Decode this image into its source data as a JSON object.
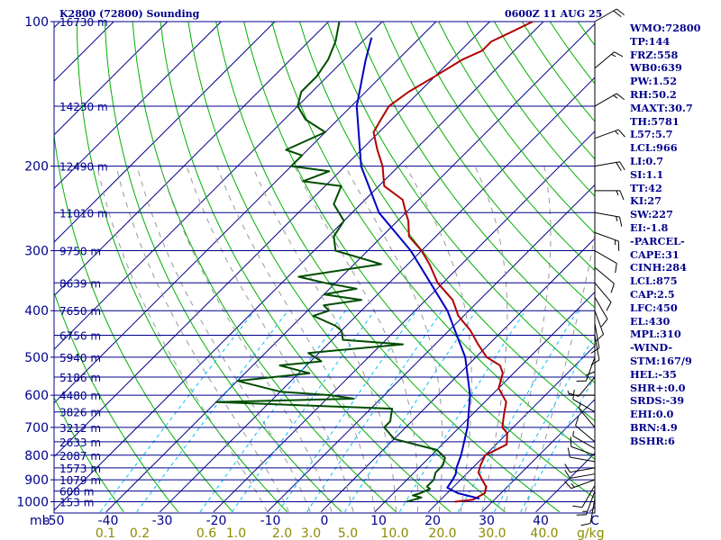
{
  "header": {
    "station": "K2800 (72800) Sounding",
    "time": "0600Z 11 AUG 25"
  },
  "indices": [
    "WMO:72800",
    "TP:144",
    "FRZ:558",
    "WB0:639",
    "PW:1.52",
    "RH:50.2",
    "MAXT:30.7",
    "TH:5781",
    "L57:5.7",
    "LCL:966",
    "LI:0.7",
    "SI:1.1",
    "TT:42",
    "KI:27",
    "SW:227",
    "EI:-1.8",
    "-PARCEL-",
    "CAPE:31",
    "CINH:284",
    "LCL:875",
    "CAP:2.5",
    "LFC:450",
    "EL:430",
    "MPL:310",
    "-WIND-",
    "STM:167/9",
    "HEL:-35",
    "SHR+:0.0",
    "SRDS:-39",
    "EHI:0.0",
    "BRN:4.9",
    "BSHR:6"
  ],
  "colors": {
    "pressure_line": "#00008b",
    "skewed_isotherm": "#00008b",
    "dry_adiabat": "#00b000",
    "mixing_ratio": "#00bfff",
    "moist_adiabat": "#999999",
    "temperature": "#b00000",
    "dewpoint": "#004d00",
    "parcel": "#0000c0",
    "text": "#00008b",
    "mixing_ratio_labels": "#8b8b00"
  },
  "chart_data": {
    "type": "line",
    "subtype": "skew-T log-P sounding",
    "axes": {
      "y_label": "mb",
      "y_ticks": [
        100,
        200,
        300,
        400,
        500,
        600,
        700,
        800,
        900,
        1000
      ],
      "y_scale": "log",
      "y_range": [
        1050,
        100
      ],
      "x_ticks": [
        -50,
        -40,
        -30,
        -20,
        -10,
        0,
        10,
        20,
        30,
        40,
        "C"
      ],
      "x_unit": "C",
      "mixing_ratio_ticks": [
        "0.1",
        "0.2",
        "0.6",
        "1.0",
        "2.0",
        "3.0",
        "5.0",
        "10.0",
        "20.0",
        "30.0",
        "40.0"
      ],
      "mixing_ratio_unit": "g/kg"
    },
    "height_labels": [
      {
        "p": 100,
        "label": "16730 m"
      },
      {
        "p": 150,
        "label": "14230 m"
      },
      {
        "p": 200,
        "label": "12490 m"
      },
      {
        "p": 250,
        "label": "11010 m"
      },
      {
        "p": 300,
        "label": "9750 m"
      },
      {
        "p": 350,
        "label": "8639 m"
      },
      {
        "p": 400,
        "label": "7650 m"
      },
      {
        "p": 450,
        "label": "6756 m"
      },
      {
        "p": 500,
        "label": "5940 m"
      },
      {
        "p": 550,
        "label": "5186 m"
      },
      {
        "p": 600,
        "label": "4480 m"
      },
      {
        "p": 650,
        "label": "3826 m"
      },
      {
        "p": 700,
        "label": "3212 m"
      },
      {
        "p": 750,
        "label": "2633 m"
      },
      {
        "p": 800,
        "label": "2087 m"
      },
      {
        "p": 850,
        "label": "1573 m"
      },
      {
        "p": 900,
        "label": "1079 m"
      },
      {
        "p": 950,
        "label": "608 m"
      },
      {
        "p": 1000,
        "label": "153 m"
      }
    ],
    "series": [
      {
        "name": "temperature",
        "points": [
          [
            1000,
            23
          ],
          [
            990,
            26
          ],
          [
            960,
            27
          ],
          [
            930,
            26
          ],
          [
            900,
            24
          ],
          [
            870,
            22
          ],
          [
            840,
            21
          ],
          [
            800,
            20
          ],
          [
            760,
            22
          ],
          [
            720,
            20
          ],
          [
            700,
            18
          ],
          [
            660,
            16
          ],
          [
            620,
            14
          ],
          [
            580,
            10
          ],
          [
            540,
            8
          ],
          [
            520,
            6
          ],
          [
            500,
            2
          ],
          [
            470,
            -2
          ],
          [
            440,
            -6
          ],
          [
            410,
            -11
          ],
          [
            380,
            -15
          ],
          [
            350,
            -21
          ],
          [
            320,
            -26
          ],
          [
            300,
            -30
          ],
          [
            280,
            -35
          ],
          [
            260,
            -38
          ],
          [
            250,
            -40
          ],
          [
            235,
            -43
          ],
          [
            220,
            -49
          ],
          [
            200,
            -53
          ],
          [
            185,
            -57
          ],
          [
            170,
            -61
          ],
          [
            160,
            -62
          ],
          [
            150,
            -63
          ],
          [
            140,
            -62
          ],
          [
            130,
            -60
          ],
          [
            120,
            -58
          ],
          [
            115,
            -56
          ],
          [
            110,
            -56
          ],
          [
            105,
            -54
          ],
          [
            100,
            -52
          ]
        ]
      },
      {
        "name": "dewpoint",
        "points": [
          [
            1000,
            14
          ],
          [
            990,
            15
          ],
          [
            980,
            16
          ],
          [
            970,
            14
          ],
          [
            960,
            15
          ],
          [
            940,
            16
          ],
          [
            930,
            15
          ],
          [
            900,
            15
          ],
          [
            870,
            14
          ],
          [
            840,
            14
          ],
          [
            810,
            13
          ],
          [
            780,
            10
          ],
          [
            760,
            5
          ],
          [
            740,
            0
          ],
          [
            700,
            -4
          ],
          [
            680,
            -4
          ],
          [
            660,
            -5
          ],
          [
            640,
            -6
          ],
          [
            620,
            -40
          ],
          [
            610,
            -15
          ],
          [
            600,
            -20
          ],
          [
            590,
            -30
          ],
          [
            560,
            -40
          ],
          [
            540,
            -28
          ],
          [
            520,
            -35
          ],
          [
            510,
            -28
          ],
          [
            490,
            -32
          ],
          [
            470,
            -16
          ],
          [
            460,
            -28
          ],
          [
            440,
            -30
          ],
          [
            430,
            -32
          ],
          [
            410,
            -38
          ],
          [
            400,
            -36
          ],
          [
            390,
            -38
          ],
          [
            380,
            -32
          ],
          [
            370,
            -40
          ],
          [
            360,
            -35
          ],
          [
            350,
            -42
          ],
          [
            340,
            -48
          ],
          [
            320,
            -35
          ],
          [
            300,
            -46
          ],
          [
            280,
            -49
          ],
          [
            260,
            -50
          ],
          [
            240,
            -55
          ],
          [
            220,
            -57
          ],
          [
            215,
            -65
          ],
          [
            205,
            -62
          ],
          [
            200,
            -70
          ],
          [
            190,
            -70
          ],
          [
            185,
            -74
          ],
          [
            170,
            -70
          ],
          [
            160,
            -76
          ],
          [
            150,
            -80
          ],
          [
            140,
            -82
          ],
          [
            130,
            -82
          ],
          [
            120,
            -83
          ],
          [
            110,
            -85
          ],
          [
            100,
            -88
          ]
        ]
      },
      {
        "name": "parcel",
        "points": [
          [
            985,
            27
          ],
          [
            960,
            22
          ],
          [
            935,
            19
          ],
          [
            900,
            18.5
          ],
          [
            875,
            18
          ],
          [
            850,
            17
          ],
          [
            800,
            15.5
          ],
          [
            700,
            11.5
          ],
          [
            600,
            6
          ],
          [
            500,
            -2
          ],
          [
            400,
            -14
          ],
          [
            300,
            -32
          ],
          [
            250,
            -45
          ],
          [
            200,
            -57
          ],
          [
            150,
            -69
          ],
          [
            120,
            -76
          ],
          [
            108,
            -79
          ]
        ]
      }
    ],
    "wind_barbs": [
      {
        "p": 985,
        "dir": 190,
        "spd": 10
      },
      {
        "p": 950,
        "dir": 200,
        "spd": 15
      },
      {
        "p": 925,
        "dir": 210,
        "spd": 10
      },
      {
        "p": 900,
        "dir": 250,
        "spd": 15
      },
      {
        "p": 875,
        "dir": 260,
        "spd": 10
      },
      {
        "p": 850,
        "dir": 260,
        "spd": 10
      },
      {
        "p": 825,
        "dir": 280,
        "spd": 10
      },
      {
        "p": 800,
        "dir": 290,
        "spd": 10
      },
      {
        "p": 775,
        "dir": 300,
        "spd": 5
      },
      {
        "p": 750,
        "dir": 310,
        "spd": 10
      },
      {
        "p": 700,
        "dir": 320,
        "spd": 5
      },
      {
        "p": 650,
        "dir": 300,
        "spd": 10
      },
      {
        "p": 600,
        "dir": 270,
        "spd": 5
      },
      {
        "p": 550,
        "dir": 220,
        "spd": 10
      },
      {
        "p": 500,
        "dir": 200,
        "spd": 10
      },
      {
        "p": 475,
        "dir": 180,
        "spd": 10
      },
      {
        "p": 450,
        "dir": 170,
        "spd": 10
      },
      {
        "p": 425,
        "dir": 170,
        "spd": 10
      },
      {
        "p": 400,
        "dir": 160,
        "spd": 10
      },
      {
        "p": 375,
        "dir": 150,
        "spd": 10
      },
      {
        "p": 350,
        "dir": 140,
        "spd": 10
      },
      {
        "p": 325,
        "dir": 130,
        "spd": 10
      },
      {
        "p": 300,
        "dir": 120,
        "spd": 10
      },
      {
        "p": 275,
        "dir": 110,
        "spd": 15
      },
      {
        "p": 250,
        "dir": 100,
        "spd": 15
      },
      {
        "p": 225,
        "dir": 90,
        "spd": 15
      },
      {
        "p": 200,
        "dir": 80,
        "spd": 20
      },
      {
        "p": 175,
        "dir": 70,
        "spd": 15
      },
      {
        "p": 150,
        "dir": 60,
        "spd": 15
      },
      {
        "p": 125,
        "dir": 50,
        "spd": 15
      },
      {
        "p": 100,
        "dir": 60,
        "spd": 20
      }
    ]
  }
}
